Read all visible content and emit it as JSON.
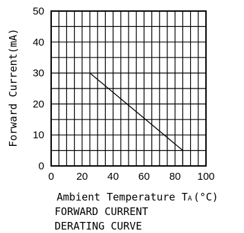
{
  "chart_data": {
    "type": "line",
    "title_lines": [
      "FORWARD CURRENT",
      "DERATING CURVE"
    ],
    "xlabel": "Ambient Temperature T",
    "xlabel_sub": "A",
    "xlabel_unit": "(°C)",
    "ylabel": "Forward Current(mA)",
    "xlim": [
      0,
      100
    ],
    "ylim": [
      0,
      50
    ],
    "x_ticks": [
      0,
      20,
      40,
      60,
      80,
      100
    ],
    "y_ticks": [
      0,
      10,
      20,
      30,
      40,
      50
    ],
    "grid": true,
    "series": [
      {
        "x": [
          25,
          85,
          85
        ],
        "y": [
          30,
          5,
          0
        ]
      }
    ]
  }
}
